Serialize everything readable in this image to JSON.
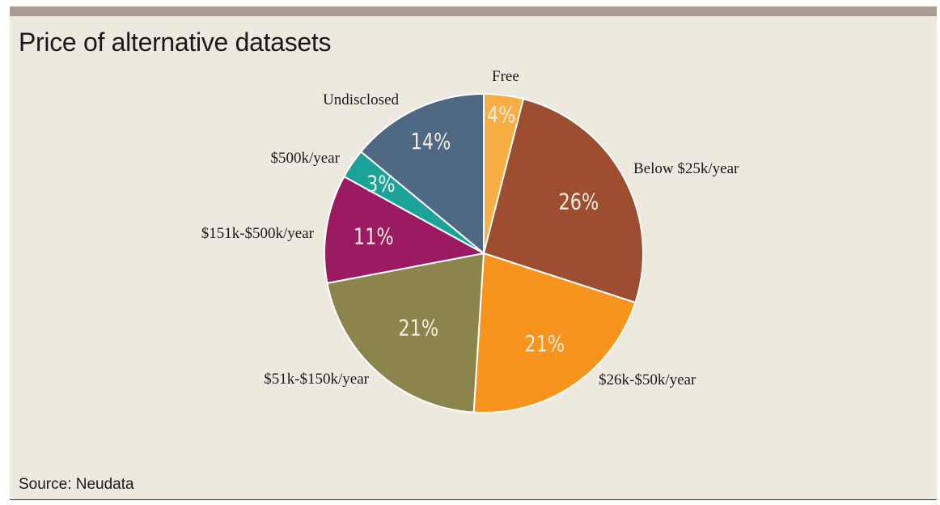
{
  "title": "Price of alternative datasets",
  "source": "Source: Neudata",
  "chart_data": {
    "type": "pie",
    "title": "Price of alternative datasets",
    "slices": [
      {
        "label": "Free",
        "value": 4,
        "display": "4%",
        "color": "#f7af45"
      },
      {
        "label": "Below $25k/year",
        "value": 26,
        "display": "26%",
        "color": "#9e4e30"
      },
      {
        "label": "$26k-$50k/year",
        "value": 21,
        "display": "21%",
        "color": "#f6941e"
      },
      {
        "label": "$51k-$150k/year",
        "value": 21,
        "display": "21%",
        "color": "#8b854d"
      },
      {
        "label": "$151k-$500k/year",
        "value": 11,
        "display": "11%",
        "color": "#9b1b63"
      },
      {
        "label": "$500k/year",
        "value": 3,
        "display": "3%",
        "color": "#1ba39a"
      },
      {
        "label": "Undisclosed",
        "value": 14,
        "display": "14%",
        "color": "#4f6884"
      }
    ]
  }
}
